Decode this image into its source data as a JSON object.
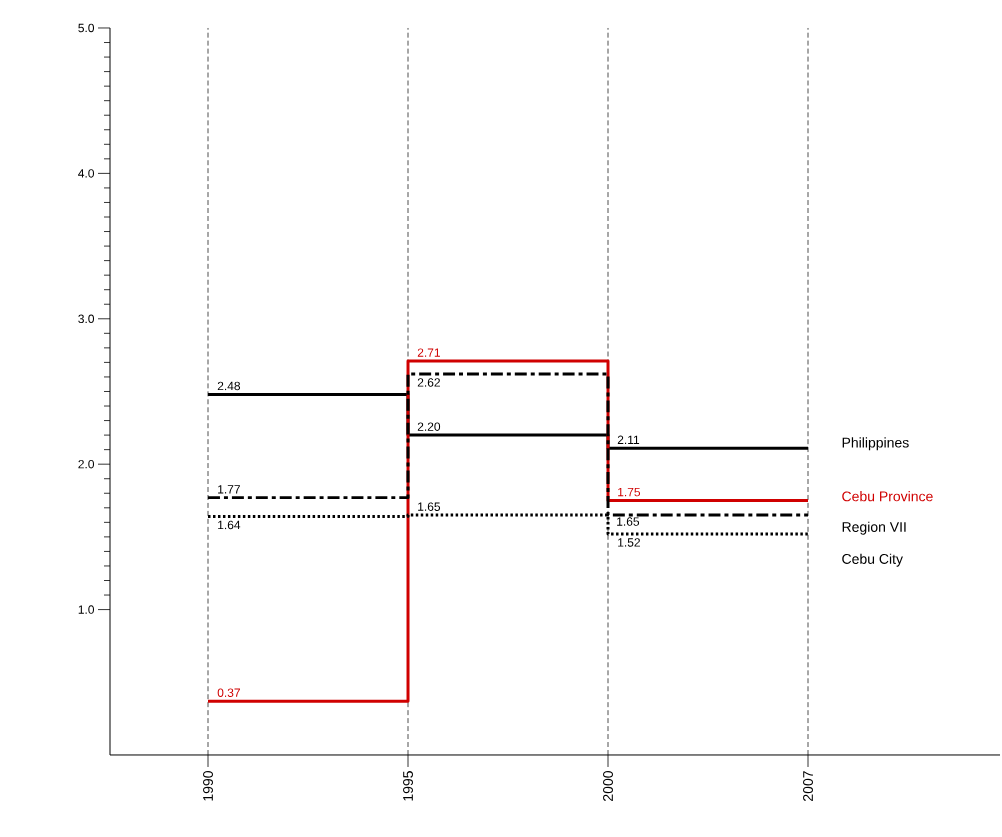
{
  "chart_data": {
    "type": "step",
    "categories": [
      "1990",
      "1995",
      "2000",
      "2007"
    ],
    "ylim": [
      0,
      5
    ],
    "yticks": [
      {
        "value": 1,
        "label": "1.0"
      },
      {
        "value": 2,
        "label": "2.0"
      },
      {
        "value": 3,
        "label": "3.0"
      },
      {
        "value": 4,
        "label": "4.0"
      },
      {
        "value": 5,
        "label": "5.0"
      }
    ],
    "grid": "x",
    "series": [
      {
        "name": "Philippines",
        "color": "#000000",
        "line_style": "solid",
        "values": [
          2.48,
          2.2,
          2.11,
          2.11
        ],
        "value_labels": [
          "2.48",
          "2.20",
          "2.11",
          null
        ]
      },
      {
        "name": "Cebu Province",
        "color": "#d00000",
        "line_style": "solid",
        "values": [
          0.37,
          2.71,
          1.75,
          1.75
        ],
        "value_labels": [
          "0.37",
          "2.71",
          "1.75",
          null
        ]
      },
      {
        "name": "Region VII",
        "color": "#000000",
        "line_style": "dashdot",
        "values": [
          1.77,
          2.62,
          1.65,
          1.65
        ],
        "value_labels": [
          "1.77",
          "2.62",
          "1.65",
          null
        ]
      },
      {
        "name": "Cebu City",
        "color": "#000000",
        "line_style": "dotted",
        "values": [
          1.64,
          1.65,
          1.52,
          1.52
        ],
        "value_labels": [
          "1.64",
          "1.65",
          "1.52",
          null
        ]
      }
    ]
  }
}
